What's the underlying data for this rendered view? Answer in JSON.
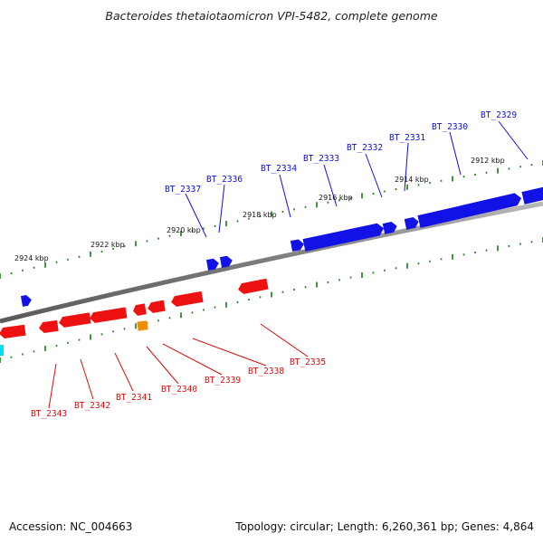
{
  "title": "Bacteroides thetaiotaomicron VPI-5482, complete genome",
  "footer": {
    "accession": "Accession: NC_004663",
    "summary": "Topology: circular; Length: 6,260,361 bp; Genes: 4,864"
  },
  "colors": {
    "forward_gene": "#1212e6",
    "reverse_gene": "#ee1111",
    "other_gene_orange": "#f08c00",
    "other_gene_cyan": "#00e0f0",
    "backbone": "#8a8a8a",
    "tick": "#1a7a1a",
    "label_forward": "#1010c8",
    "label_reverse": "#d01010"
  },
  "tick_labels": [
    "2924 kbp",
    "2922 kbp",
    "2920 kbp",
    "2918 kbp",
    "2916 kbp",
    "2914 kbp",
    "2912 kbp"
  ],
  "forward_genes": [
    "BT_2337",
    "BT_2336",
    "BT_2334",
    "BT_2333",
    "BT_2332",
    "BT_2331",
    "BT_2330",
    "BT_2329"
  ],
  "reverse_genes": [
    "BT_2343",
    "BT_2342",
    "BT_2341",
    "BT_2340",
    "BT_2339",
    "BT_2338",
    "BT_2335"
  ]
}
